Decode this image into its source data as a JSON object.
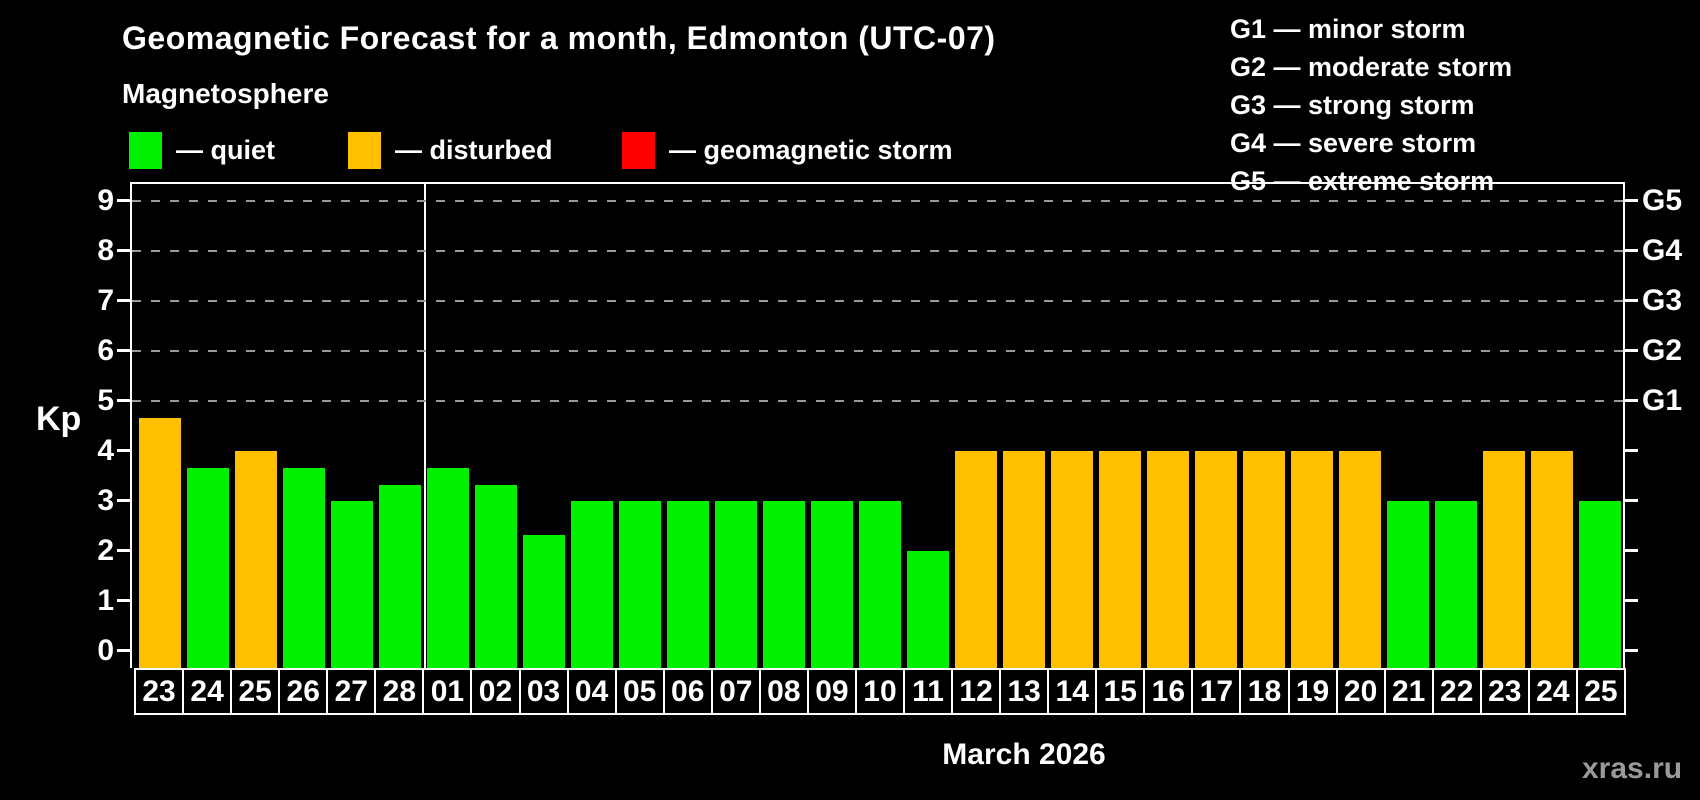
{
  "title": "Geomagnetic Forecast for a month, Edmonton (UTC-07)",
  "subtitle": "Magnetosphere",
  "legend": {
    "items": [
      {
        "key": "quiet",
        "label": "— quiet"
      },
      {
        "key": "disturbed",
        "label": "— disturbed"
      },
      {
        "key": "storm",
        "label": "— geomagnetic storm"
      }
    ]
  },
  "g_legend": [
    "G1 — minor storm",
    "G2 — moderate storm",
    "G3 — strong storm",
    "G4 — severe storm",
    "G5 — extreme storm"
  ],
  "colors": {
    "quiet": "#00F000",
    "disturbed": "#FFC000",
    "storm": "#FF0000",
    "grid": "#999999",
    "axis": "#FFFFFF"
  },
  "watermark": "xras.ru",
  "chart_data": {
    "type": "bar",
    "title": "Geomagnetic Forecast for a month, Edmonton (UTC-07)",
    "ylabel": "Kp",
    "xlabel": "March 2026",
    "ylim": [
      0,
      9
    ],
    "yticks": [
      0,
      1,
      2,
      3,
      4,
      5,
      6,
      7,
      8,
      9
    ],
    "grid": "dashed horizontal at storm levels 5-9",
    "right_axis_labels": [
      {
        "kp": 5,
        "label": "G1"
      },
      {
        "kp": 6,
        "label": "G2"
      },
      {
        "kp": 7,
        "label": "G3"
      },
      {
        "kp": 8,
        "label": "G4"
      },
      {
        "kp": 9,
        "label": "G5"
      }
    ],
    "month_separator_after_index": 5,
    "bars": [
      {
        "day": "23",
        "kp": 4.67,
        "status": "disturbed"
      },
      {
        "day": "24",
        "kp": 3.67,
        "status": "quiet"
      },
      {
        "day": "25",
        "kp": 4.0,
        "status": "disturbed"
      },
      {
        "day": "26",
        "kp": 3.67,
        "status": "quiet"
      },
      {
        "day": "27",
        "kp": 3.0,
        "status": "quiet"
      },
      {
        "day": "28",
        "kp": 3.33,
        "status": "quiet"
      },
      {
        "day": "01",
        "kp": 3.67,
        "status": "quiet"
      },
      {
        "day": "02",
        "kp": 3.33,
        "status": "quiet"
      },
      {
        "day": "03",
        "kp": 2.33,
        "status": "quiet"
      },
      {
        "day": "04",
        "kp": 3.0,
        "status": "quiet"
      },
      {
        "day": "05",
        "kp": 3.0,
        "status": "quiet"
      },
      {
        "day": "06",
        "kp": 3.0,
        "status": "quiet"
      },
      {
        "day": "07",
        "kp": 3.0,
        "status": "quiet"
      },
      {
        "day": "08",
        "kp": 3.0,
        "status": "quiet"
      },
      {
        "day": "09",
        "kp": 3.0,
        "status": "quiet"
      },
      {
        "day": "10",
        "kp": 3.0,
        "status": "quiet"
      },
      {
        "day": "11",
        "kp": 2.0,
        "status": "quiet"
      },
      {
        "day": "12",
        "kp": 4.0,
        "status": "disturbed"
      },
      {
        "day": "13",
        "kp": 4.0,
        "status": "disturbed"
      },
      {
        "day": "14",
        "kp": 4.0,
        "status": "disturbed"
      },
      {
        "day": "15",
        "kp": 4.0,
        "status": "disturbed"
      },
      {
        "day": "16",
        "kp": 4.0,
        "status": "disturbed"
      },
      {
        "day": "17",
        "kp": 4.0,
        "status": "disturbed"
      },
      {
        "day": "18",
        "kp": 4.0,
        "status": "disturbed"
      },
      {
        "day": "19",
        "kp": 4.0,
        "status": "disturbed"
      },
      {
        "day": "20",
        "kp": 4.0,
        "status": "disturbed"
      },
      {
        "day": "21",
        "kp": 3.0,
        "status": "quiet"
      },
      {
        "day": "22",
        "kp": 3.0,
        "status": "quiet"
      },
      {
        "day": "23",
        "kp": 4.0,
        "status": "disturbed"
      },
      {
        "day": "24",
        "kp": 4.0,
        "status": "disturbed"
      },
      {
        "day": "25",
        "kp": 3.0,
        "status": "quiet"
      }
    ]
  }
}
